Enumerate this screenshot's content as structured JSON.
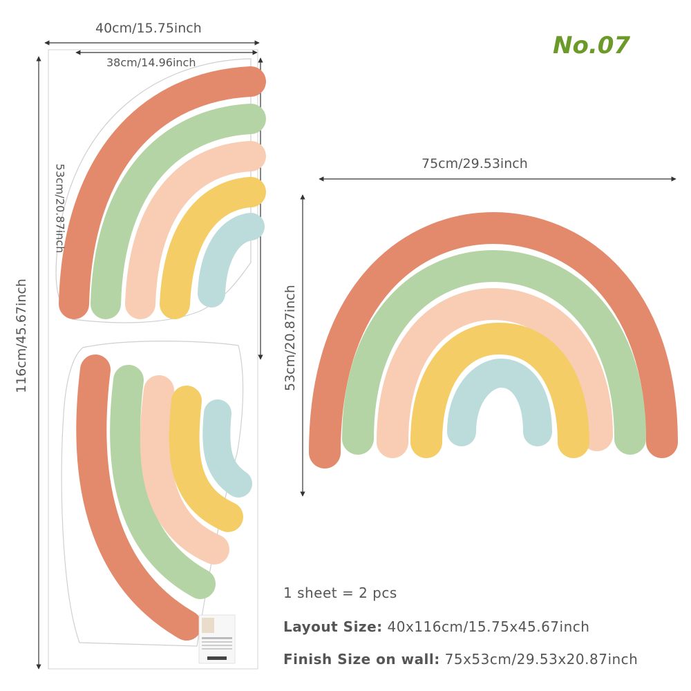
{
  "model_number": "No.07",
  "sheet": {
    "width_label": "40cm/15.75inch",
    "inner_width_label": "38cm/14.96inch",
    "height_label": "116cm/45.67inch",
    "piece_height_label": "53cm/20.87inch"
  },
  "finished": {
    "width_label": "75cm/29.53inch",
    "height_label": "53cm/20.87inch"
  },
  "info": {
    "pieces": "1 sheet = 2 pcs",
    "layout_label": "Layout Size:",
    "layout_value": "40x116cm/15.75x45.67inch",
    "finish_label": "Finish Size on wall:",
    "finish_value": "75x53cm/29.53x20.87inch"
  },
  "colors": {
    "terracotta": "#e38a6c",
    "sage": "#b5d4a5",
    "peach": "#f8cdb4",
    "mustard": "#f4cd66",
    "sky": "#bcdcdc",
    "accent": "#6b9a28"
  }
}
